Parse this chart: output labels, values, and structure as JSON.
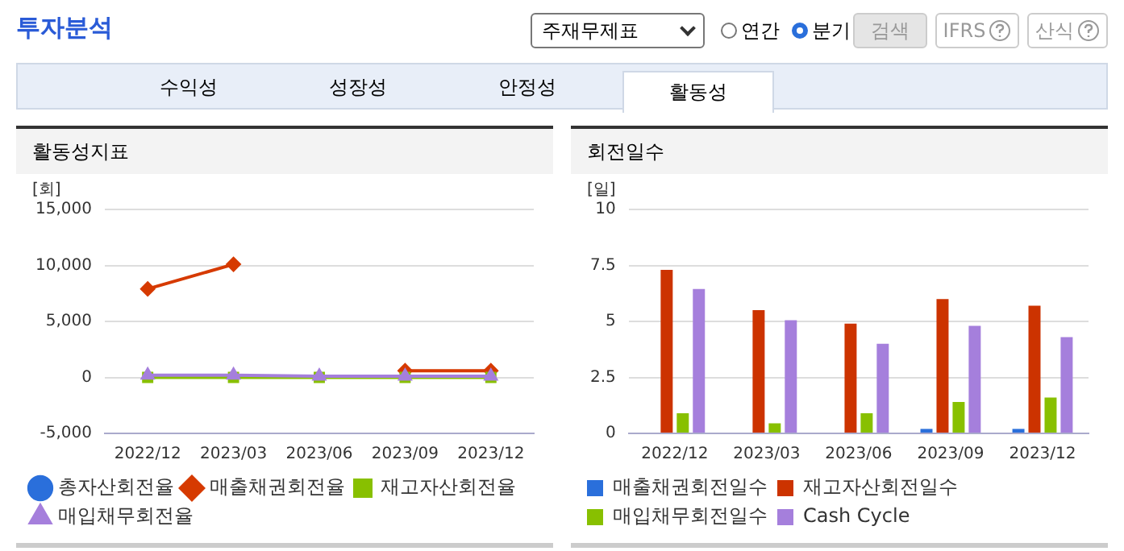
{
  "chart_data": [
    {
      "type": "line",
      "title": "활동성지표",
      "ylabel": "[회]",
      "categories": [
        "2022/12",
        "2023/03",
        "2023/06",
        "2023/09",
        "2023/12"
      ],
      "series": [
        {
          "name": "총자산회전율",
          "color": "#2a6fdb",
          "marker": "circle",
          "values": [
            null,
            null,
            null,
            null,
            null
          ]
        },
        {
          "name": "매출채권회전율",
          "color": "#d63a00",
          "marker": "diamond",
          "values": [
            7900,
            10100,
            null,
            600,
            600
          ]
        },
        {
          "name": "재고자산회전율",
          "color": "#88c000",
          "marker": "square",
          "values": [
            0,
            0,
            0,
            0,
            0
          ]
        },
        {
          "name": "매입채무회전율",
          "color": "#a57fdc",
          "marker": "triangle",
          "values": [
            200,
            200,
            100,
            100,
            100
          ]
        }
      ],
      "ylim": [
        -5000,
        15000
      ],
      "yticks": [
        {
          "value": -5000,
          "label": "-5,000"
        },
        0,
        {
          "value": 5000,
          "label": "5,000"
        },
        {
          "value": 10000,
          "label": "10,000"
        },
        {
          "value": 15000,
          "label": "15,000"
        }
      ],
      "grid": "y",
      "legend": "bottom",
      "annotations": [
        "투자분석",
        "주재무제표",
        "연간",
        "분기",
        "검색",
        "IFRS",
        "산식",
        "수익성",
        "성장성",
        "안정성",
        "활동성"
      ]
    },
    {
      "type": "bar",
      "title": "회전일수",
      "ylabel": "[일]",
      "categories": [
        "2022/12",
        "2023/03",
        "2023/06",
        "2023/09",
        "2023/12"
      ],
      "series": [
        {
          "name": "매출채권회전일수",
          "color": "#2a6fdb",
          "values": [
            0,
            0,
            0,
            0.2,
            0.2
          ]
        },
        {
          "name": "재고자산회전일수",
          "color": "#cc3300",
          "values": [
            7.3,
            5.5,
            4.9,
            6.0,
            5.7
          ]
        },
        {
          "name": "매입채무회전일수",
          "color": "#88c000",
          "values": [
            0.9,
            0.45,
            0.9,
            1.4,
            1.6
          ]
        },
        {
          "name": "Cash Cycle",
          "color": "#a57fdc",
          "values": [
            6.45,
            5.05,
            4.0,
            4.8,
            4.3
          ]
        }
      ],
      "ylim": [
        0,
        10
      ],
      "yticks": [
        0,
        2.5,
        5,
        7.5,
        10
      ],
      "grid": "y",
      "legend": "bottom"
    }
  ]
}
